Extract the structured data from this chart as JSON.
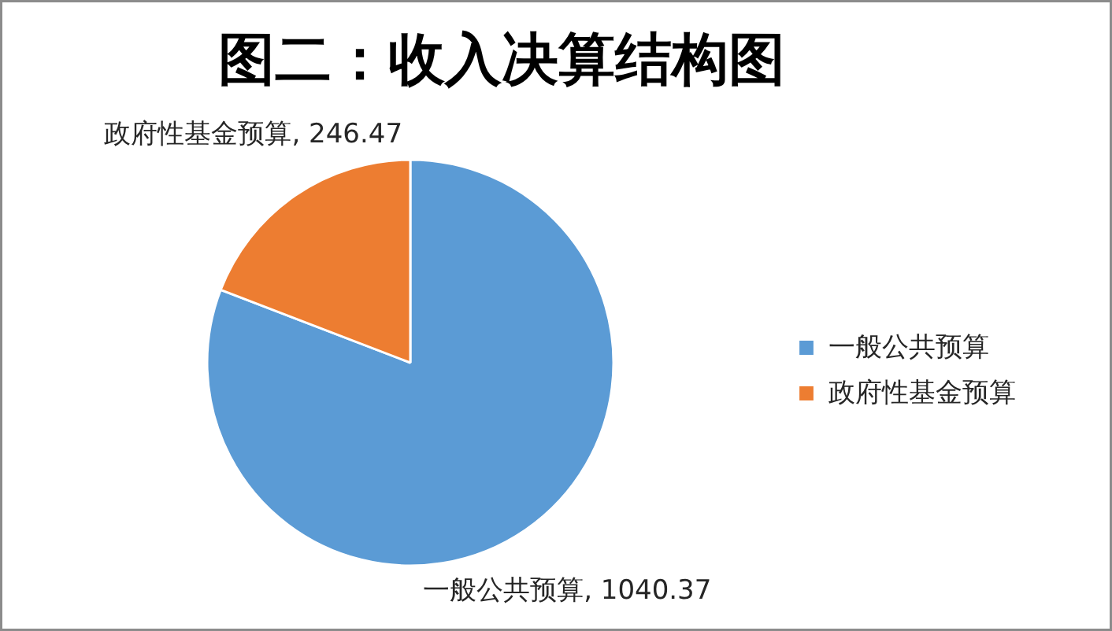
{
  "chart_data": {
    "type": "pie",
    "title": "图二：收入决算结构图",
    "categories": [
      "一般公共预算",
      "政府性基金预算"
    ],
    "values": [
      1040.37,
      246.47
    ],
    "value_labels": [
      "一般公共预算, 1040.37",
      "政府性基金预算, 246.47"
    ],
    "colors": [
      "#5b9bd5",
      "#ed7d31"
    ],
    "legend": "right"
  }
}
